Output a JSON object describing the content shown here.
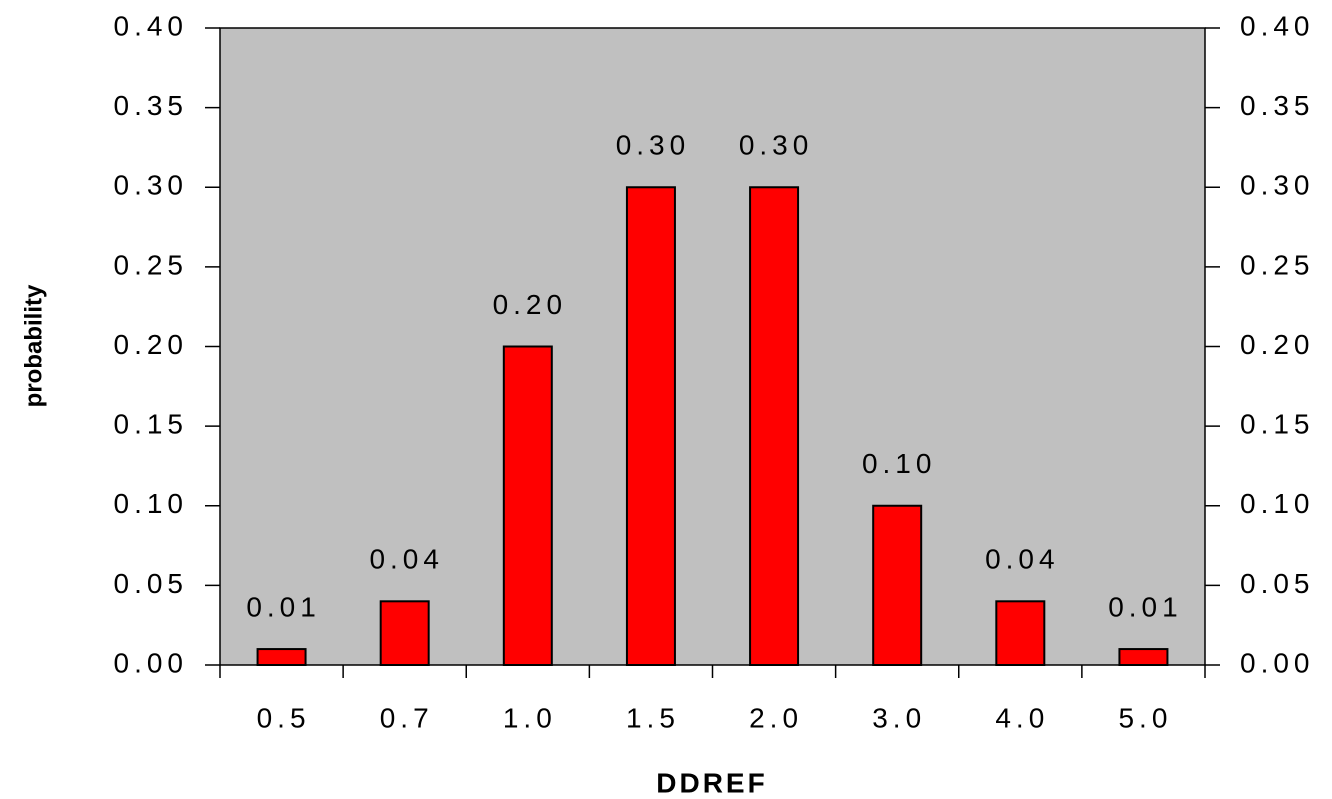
{
  "chart_data": {
    "type": "bar",
    "x_label": "DDREF",
    "y_label": "probability",
    "categories": [
      "0.5",
      "0.7",
      "1.0",
      "1.5",
      "2.0",
      "3.0",
      "4.0",
      "5.0"
    ],
    "values": [
      0.01,
      0.04,
      0.2,
      0.3,
      0.3,
      0.1,
      0.04,
      0.01
    ],
    "value_labels": [
      "0.01",
      "0.04",
      "0.20",
      "0.30",
      "0.30",
      "0.10",
      "0.04",
      "0.01"
    ],
    "color": "#ff0000",
    "plot_background": "#c0c0c0",
    "ylim": [
      0,
      0.4
    ],
    "yticks": [
      {
        "value": 0,
        "label": "0.00"
      },
      {
        "value": 0.05,
        "label": "0.05"
      },
      {
        "value": 0.1,
        "label": "0.10"
      },
      {
        "value": 0.15,
        "label": "0.15"
      },
      {
        "value": 0.2,
        "label": "0.20"
      },
      {
        "value": 0.25,
        "label": "0.25"
      },
      {
        "value": 0.3,
        "label": "0.30"
      },
      {
        "value": 0.35,
        "label": "0.35"
      },
      {
        "value": 0.4,
        "label": "0.40"
      }
    ],
    "y2lim": [
      0,
      0.4
    ],
    "y2ticks": [
      {
        "value": 0,
        "label": "0.00"
      },
      {
        "value": 0.05,
        "label": "0.05"
      },
      {
        "value": 0.1,
        "label": "0.10"
      },
      {
        "value": 0.15,
        "label": "0.15"
      },
      {
        "value": 0.2,
        "label": "0.20"
      },
      {
        "value": 0.25,
        "label": "0.25"
      },
      {
        "value": 0.3,
        "label": "0.30"
      },
      {
        "value": 0.35,
        "label": "0.35"
      },
      {
        "value": 0.4,
        "label": "0.40"
      }
    ]
  }
}
